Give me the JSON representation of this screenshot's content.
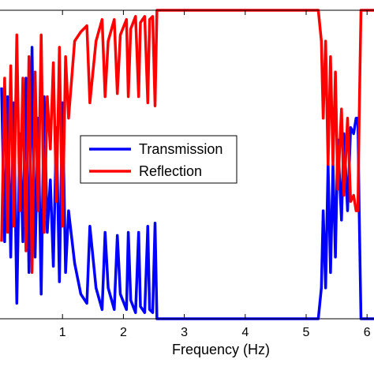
{
  "chart_data": {
    "type": "line",
    "title": "",
    "xlabel": "Frequency (Hz)",
    "ylabel": "",
    "xlim": [
      0,
      7.05
    ],
    "ylim": [
      0,
      1
    ],
    "x_ticks": [
      1,
      2,
      3,
      4,
      5,
      6
    ],
    "legend_position": "center-left",
    "series": [
      {
        "name": "Transmission",
        "color": "#0000ff",
        "points": [
          [
            0.0,
            0.75
          ],
          [
            0.05,
            0.25
          ],
          [
            0.1,
            0.72
          ],
          [
            0.15,
            0.2
          ],
          [
            0.2,
            0.7
          ],
          [
            0.25,
            0.05
          ],
          [
            0.3,
            0.6
          ],
          [
            0.35,
            0.25
          ],
          [
            0.4,
            0.78
          ],
          [
            0.45,
            0.15
          ],
          [
            0.5,
            0.88
          ],
          [
            0.55,
            0.2
          ],
          [
            0.6,
            0.65
          ],
          [
            0.65,
            0.08
          ],
          [
            0.7,
            0.72
          ],
          [
            0.75,
            0.28
          ],
          [
            0.8,
            0.45
          ],
          [
            0.85,
            0.17
          ],
          [
            0.9,
            0.62
          ],
          [
            0.95,
            0.12
          ],
          [
            1.0,
            0.7
          ],
          [
            1.05,
            0.15
          ],
          [
            1.1,
            0.35
          ],
          [
            1.2,
            0.18
          ],
          [
            1.3,
            0.08
          ],
          [
            1.4,
            0.05
          ],
          [
            1.45,
            0.3
          ],
          [
            1.55,
            0.1
          ],
          [
            1.65,
            0.03
          ],
          [
            1.7,
            0.28
          ],
          [
            1.75,
            0.1
          ],
          [
            1.85,
            0.03
          ],
          [
            1.9,
            0.27
          ],
          [
            1.95,
            0.08
          ],
          [
            2.05,
            0.03
          ],
          [
            2.08,
            0.28
          ],
          [
            2.12,
            0.06
          ],
          [
            2.2,
            0.02
          ],
          [
            2.25,
            0.28
          ],
          [
            2.28,
            0.04
          ],
          [
            2.35,
            0.02
          ],
          [
            2.4,
            0.3
          ],
          [
            2.43,
            0.03
          ],
          [
            2.48,
            0.02
          ],
          [
            2.52,
            0.31
          ],
          [
            2.55,
            0.0
          ],
          [
            2.6,
            0.0
          ],
          [
            5.2,
            0.0
          ],
          [
            5.25,
            0.1
          ],
          [
            5.28,
            0.35
          ],
          [
            5.32,
            0.1
          ],
          [
            5.36,
            0.5
          ],
          [
            5.4,
            0.15
          ],
          [
            5.44,
            0.5
          ],
          [
            5.48,
            0.2
          ],
          [
            5.52,
            0.58
          ],
          [
            5.58,
            0.32
          ],
          [
            5.62,
            0.6
          ],
          [
            5.68,
            0.35
          ],
          [
            5.73,
            0.62
          ],
          [
            5.78,
            0.6
          ],
          [
            5.82,
            0.65
          ],
          [
            5.85,
            0.65
          ],
          [
            5.87,
            0.35
          ],
          [
            5.9,
            0.0
          ],
          [
            7.05,
            0.0
          ]
        ]
      },
      {
        "name": "Reflection",
        "color": "#ff0000",
        "points": [
          [
            0.0,
            0.25
          ],
          [
            0.05,
            0.78
          ],
          [
            0.1,
            0.28
          ],
          [
            0.15,
            0.82
          ],
          [
            0.2,
            0.3
          ],
          [
            0.25,
            0.92
          ],
          [
            0.3,
            0.35
          ],
          [
            0.35,
            0.78
          ],
          [
            0.4,
            0.22
          ],
          [
            0.45,
            0.85
          ],
          [
            0.5,
            0.15
          ],
          [
            0.55,
            0.8
          ],
          [
            0.6,
            0.35
          ],
          [
            0.65,
            0.92
          ],
          [
            0.7,
            0.28
          ],
          [
            0.75,
            0.72
          ],
          [
            0.8,
            0.55
          ],
          [
            0.85,
            0.83
          ],
          [
            0.9,
            0.38
          ],
          [
            0.95,
            0.88
          ],
          [
            1.0,
            0.3
          ],
          [
            1.05,
            0.85
          ],
          [
            1.1,
            0.65
          ],
          [
            1.2,
            0.9
          ],
          [
            1.3,
            0.93
          ],
          [
            1.4,
            0.95
          ],
          [
            1.45,
            0.7
          ],
          [
            1.55,
            0.9
          ],
          [
            1.65,
            0.97
          ],
          [
            1.7,
            0.72
          ],
          [
            1.75,
            0.9
          ],
          [
            1.85,
            0.97
          ],
          [
            1.9,
            0.73
          ],
          [
            1.95,
            0.92
          ],
          [
            2.05,
            0.97
          ],
          [
            2.08,
            0.72
          ],
          [
            2.12,
            0.94
          ],
          [
            2.2,
            0.98
          ],
          [
            2.25,
            0.72
          ],
          [
            2.28,
            0.96
          ],
          [
            2.35,
            0.98
          ],
          [
            2.4,
            0.7
          ],
          [
            2.43,
            0.97
          ],
          [
            2.48,
            0.98
          ],
          [
            2.52,
            0.69
          ],
          [
            2.55,
            1.0
          ],
          [
            2.6,
            1.0
          ],
          [
            5.2,
            1.0
          ],
          [
            5.25,
            0.9
          ],
          [
            5.28,
            0.65
          ],
          [
            5.32,
            0.9
          ],
          [
            5.36,
            0.5
          ],
          [
            5.4,
            0.85
          ],
          [
            5.44,
            0.5
          ],
          [
            5.48,
            0.8
          ],
          [
            5.52,
            0.42
          ],
          [
            5.58,
            0.68
          ],
          [
            5.62,
            0.4
          ],
          [
            5.68,
            0.65
          ],
          [
            5.73,
            0.38
          ],
          [
            5.78,
            0.4
          ],
          [
            5.82,
            0.35
          ],
          [
            5.85,
            0.35
          ],
          [
            5.87,
            0.65
          ],
          [
            5.9,
            1.0
          ],
          [
            7.05,
            1.0
          ]
        ]
      }
    ]
  }
}
